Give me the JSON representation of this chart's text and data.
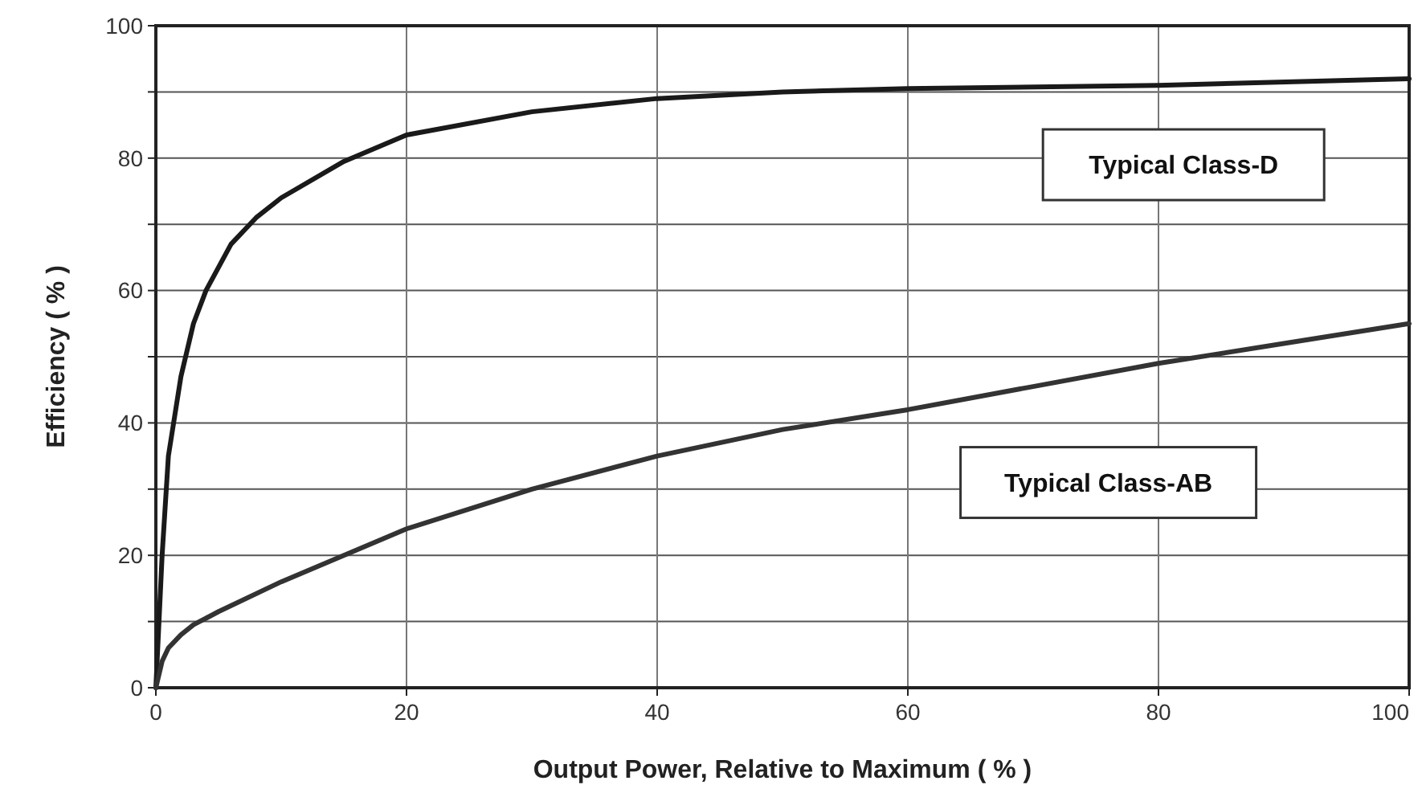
{
  "chart_data": {
    "type": "line",
    "xlabel": "Output Power, Relative to Maximum ( % )",
    "ylabel": "Efficiency ( % )",
    "xlim": [
      0,
      100
    ],
    "xticks": [
      0,
      20,
      40,
      60,
      80,
      100
    ],
    "ylim": [
      0,
      100
    ],
    "yticks": [
      0,
      {
        "value": 10,
        "label": null
      },
      20,
      {
        "value": 30,
        "label": null
      },
      40,
      {
        "value": 50,
        "label": null
      },
      60,
      {
        "value": 70,
        "label": null
      },
      80,
      {
        "value": 90,
        "label": null
      },
      100
    ],
    "grid": true,
    "marker": "none",
    "line_style": "solid",
    "series": [
      {
        "name": "Typical Class-D",
        "color": "#1a1a1a",
        "x": [
          0,
          0.5,
          1,
          2,
          3,
          4,
          6,
          8,
          10,
          15,
          20,
          30,
          40,
          50,
          60,
          80,
          100
        ],
        "values": [
          0,
          20,
          35,
          47,
          55,
          60,
          67,
          71,
          74,
          79.5,
          83.5,
          87,
          89,
          90,
          90.5,
          91,
          92
        ]
      },
      {
        "name": "Typical Class-AB",
        "color": "#333333",
        "x": [
          0,
          0.5,
          1,
          2,
          3,
          5,
          10,
          15,
          20,
          30,
          40,
          50,
          60,
          70,
          80,
          90,
          100
        ],
        "values": [
          0,
          4,
          6,
          8,
          9.5,
          11.5,
          16,
          20,
          24,
          30,
          35,
          39,
          42,
          45.5,
          49,
          52,
          55
        ]
      }
    ]
  }
}
